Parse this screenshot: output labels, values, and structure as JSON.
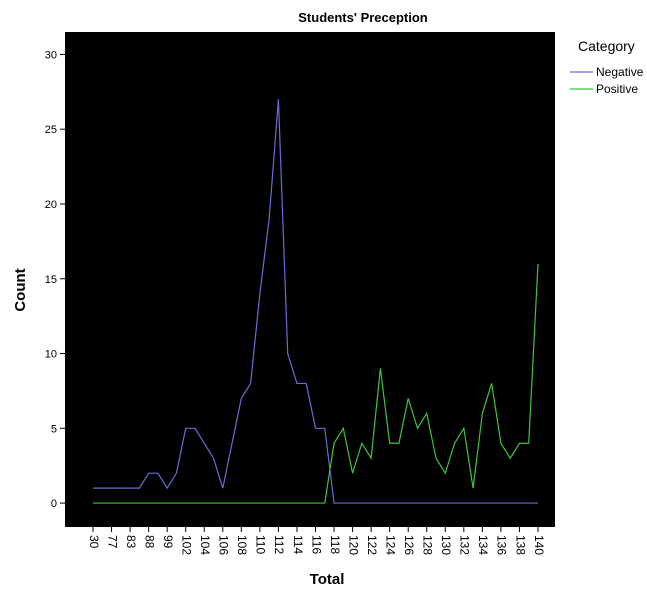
{
  "chart_data": {
    "type": "line",
    "title": "Students' Preception",
    "x_label": "Total",
    "y_label": "Count",
    "legend_title": "Category",
    "legend": "top-right",
    "categories": [
      "30",
      null,
      "77",
      null,
      "83",
      null,
      "88",
      null,
      "99",
      null,
      "102",
      null,
      "104",
      null,
      "106",
      null,
      "108",
      null,
      "110",
      null,
      "112",
      null,
      "114",
      null,
      "116",
      null,
      "118",
      null,
      "120",
      null,
      "122",
      null,
      "124",
      null,
      "126",
      null,
      "128",
      null,
      "130",
      null,
      "132",
      null,
      "134",
      null,
      "136",
      null,
      "138",
      null,
      "140"
    ],
    "series": [
      {
        "name": "Negative",
        "color": "#6a6ad8",
        "values": [
          1,
          1,
          1,
          1,
          1,
          1,
          2,
          2,
          1,
          2,
          5,
          5,
          4,
          3,
          1,
          4,
          7,
          8,
          14,
          19,
          27,
          10,
          8,
          8,
          5,
          5,
          0,
          0,
          0,
          0,
          0,
          0,
          0,
          0,
          0,
          0,
          0,
          0,
          0,
          0,
          0,
          0,
          0,
          0,
          0,
          0,
          0,
          0,
          0
        ]
      },
      {
        "name": "Positive",
        "color": "#3ec43e",
        "values": [
          0,
          0,
          0,
          0,
          0,
          0,
          0,
          0,
          0,
          0,
          0,
          0,
          0,
          0,
          0,
          0,
          0,
          0,
          0,
          0,
          0,
          0,
          0,
          0,
          0,
          0,
          4,
          5,
          2,
          4,
          3,
          9,
          4,
          4,
          7,
          5,
          6,
          3,
          2,
          4,
          5,
          1,
          6,
          8,
          4,
          3,
          4,
          4,
          16
        ]
      }
    ],
    "ylim": [
      -1.6,
      31.5
    ],
    "yticks": [
      0,
      5,
      10,
      15,
      20,
      25,
      30
    ],
    "grid": false
  }
}
